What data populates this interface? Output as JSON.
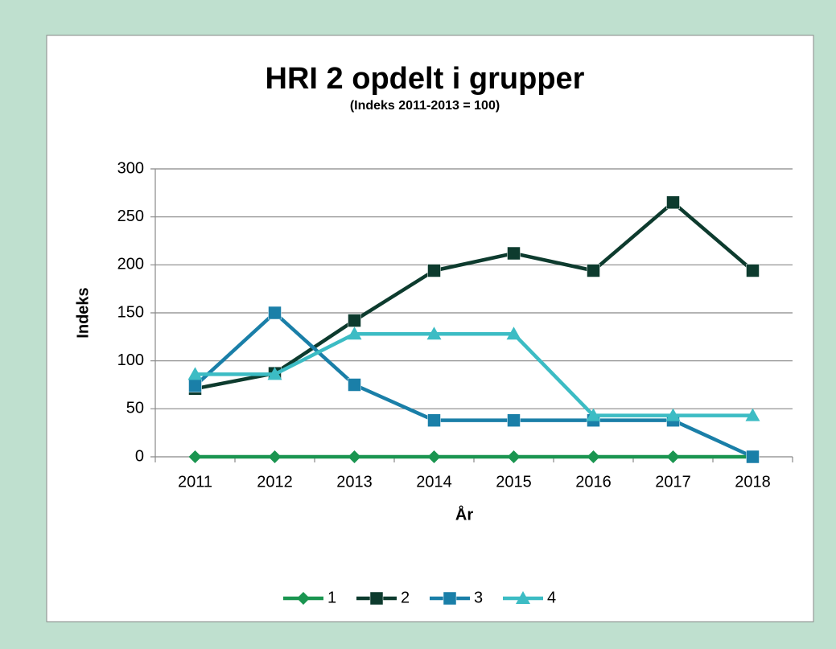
{
  "chart_data": {
    "type": "line",
    "title": "HRI 2 opdelt i grupper",
    "subtitle": "(Indeks 2011-2013 = 100)",
    "x_label": "År",
    "y_label": "Indeks",
    "categories": [
      "2011",
      "2012",
      "2013",
      "2014",
      "2015",
      "2016",
      "2017",
      "2018"
    ],
    "series": [
      {
        "name": "1",
        "color": "#1a9550",
        "marker": "diamond",
        "values": [
          0,
          0,
          0,
          0,
          0,
          0,
          0,
          0
        ]
      },
      {
        "name": "2",
        "color": "#0d3b2e",
        "marker": "square",
        "values": [
          71,
          87,
          142,
          194,
          212,
          194,
          265,
          194
        ]
      },
      {
        "name": "3",
        "color": "#1a7fa8",
        "marker": "square",
        "values": [
          74,
          150,
          75,
          38,
          38,
          38,
          38,
          0
        ]
      },
      {
        "name": "4",
        "color": "#3cbcc4",
        "marker": "triangle",
        "values": [
          86,
          86,
          128,
          128,
          128,
          43,
          43,
          43
        ]
      }
    ],
    "ylim": [
      0,
      300
    ],
    "yticks": [
      0,
      50,
      100,
      150,
      200,
      250,
      300
    ],
    "grid": true,
    "legend": "bottom"
  }
}
